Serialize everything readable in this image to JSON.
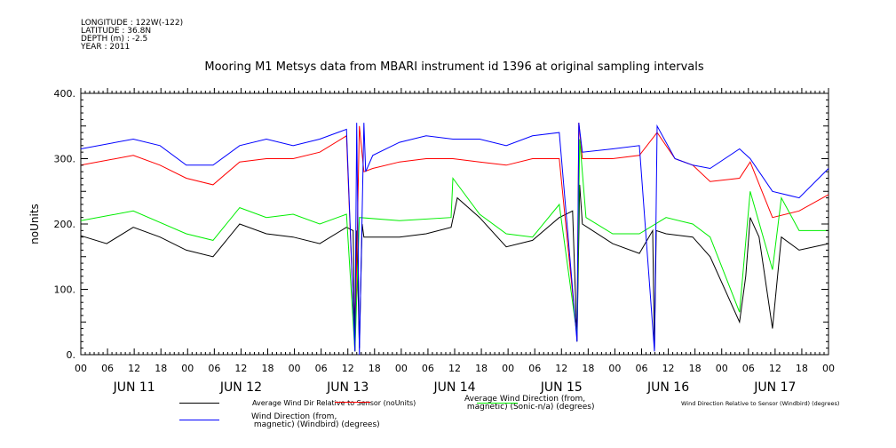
{
  "header": {
    "longitude": "LONGITUDE : 122W(-122)",
    "latitude": "LATITUDE : 36.8N",
    "depth": "DEPTH (m) : -2.5",
    "year": "YEAR : 2011"
  },
  "chart_data": {
    "type": "line",
    "title": "Mooring M1 Metsys data from MBARI instrument id 1396 at original sampling intervals",
    "ylabel": "noUnits",
    "xlabel": "",
    "ylim": [
      0,
      400
    ],
    "xlim_hours": [
      0,
      168
    ],
    "yticks": [
      "0.",
      "100.",
      "200.",
      "300.",
      "400."
    ],
    "yticks_values": [
      0,
      100,
      200,
      300,
      400
    ],
    "xtick_hour_labels": [
      "00",
      "06",
      "12",
      "18"
    ],
    "day_labels": [
      "JUN 11",
      "JUN 12",
      "JUN 13",
      "JUN 14",
      "JUN 15",
      "JUN 16",
      "JUN 17"
    ],
    "series": [
      {
        "name": "Average Wind Dir Relative to Sensor (noUnits)",
        "color": "#000000",
        "x": [
          0,
          5.8,
          11.8,
          17.8,
          23.7,
          29.7,
          35.7,
          41.7,
          47.7,
          53.7,
          59.7,
          61.2,
          61.6,
          62,
          62.6,
          63.2,
          63.6,
          65.6,
          71.6,
          77.6,
          83.2,
          84.6,
          89.6,
          95.6,
          101.5,
          107.5,
          110.5,
          111.5,
          112.1,
          112.7,
          119.5,
          125.5,
          128.5,
          128.9,
          129.3,
          131.5,
          137.5,
          141.4,
          148,
          149.4,
          150.4,
          152.4,
          155.4,
          157.4,
          161.4,
          168
        ],
        "y": [
          182,
          170,
          195,
          180,
          160,
          150,
          200,
          185,
          180,
          170,
          195,
          190,
          5,
          190,
          10,
          200,
          180,
          180,
          180,
          185,
          195,
          240,
          210,
          165,
          175,
          210,
          220,
          20,
          260,
          200,
          170,
          155,
          190,
          5,
          190,
          185,
          180,
          150,
          50,
          120,
          210,
          180,
          40,
          180,
          160,
          170
        ]
      },
      {
        "name": "Average Wind Direction (from,\n magnetic) (Sonic-n/a) (degrees)",
        "color": "#ff0000",
        "x": [
          0,
          11.8,
          17.8,
          23.7,
          29.7,
          35.7,
          41.7,
          47.7,
          53.7,
          59.7,
          61.6,
          62.6,
          63.6,
          65.6,
          71.6,
          77.6,
          83.6,
          89.6,
          95.6,
          101.5,
          107.5,
          111.5,
          111.9,
          112.7,
          119.5,
          125.5,
          129.5,
          133.5,
          137.5,
          141.4,
          148,
          150.4,
          155.4,
          161.4,
          168
        ],
        "y": [
          290,
          305,
          290,
          270,
          260,
          295,
          300,
          300,
          310,
          335,
          5,
          350,
          280,
          285,
          295,
          300,
          300,
          295,
          290,
          300,
          300,
          25,
          355,
          300,
          300,
          305,
          340,
          300,
          290,
          265,
          270,
          295,
          210,
          220,
          245
        ]
      },
      {
        "name": "Wind Direction Relative to Sensor (Windbird) (degrees)",
        "color": "#00ee00",
        "x": [
          0,
          11.8,
          23.7,
          29.7,
          35.7,
          41.7,
          47.7,
          53.7,
          59.7,
          61.6,
          62.6,
          71.6,
          83.2,
          83.6,
          89.6,
          95.6,
          101.5,
          107.5,
          111.5,
          112.1,
          113.5,
          119.5,
          125.5,
          131.5,
          137.5,
          141.4,
          148,
          150.4,
          155.4,
          157.4,
          161.4,
          168
        ],
        "y": [
          205,
          220,
          185,
          175,
          225,
          210,
          215,
          200,
          215,
          5,
          210,
          205,
          210,
          270,
          215,
          185,
          180,
          230,
          30,
          330,
          210,
          185,
          185,
          210,
          200,
          180,
          65,
          250,
          130,
          240,
          190,
          190
        ]
      },
      {
        "name": "Wind Direction (from,\n magnetic) (Windbird) (degrees)",
        "color": "#0000ff",
        "x": [
          0,
          11.8,
          17.8,
          23.7,
          29.7,
          35.7,
          41.7,
          47.7,
          53.7,
          59.7,
          61.6,
          62,
          62.6,
          63.6,
          64,
          65.6,
          71.6,
          77.6,
          83.6,
          89.6,
          95.6,
          101.5,
          107.5,
          111.5,
          111.9,
          112.7,
          119.5,
          125.5,
          128.9,
          129.5,
          133.5,
          137.5,
          141.4,
          148,
          150.4,
          155.4,
          161.4,
          168
        ],
        "y": [
          315,
          330,
          320,
          290,
          290,
          320,
          330,
          320,
          330,
          345,
          5,
          355,
          0,
          355,
          280,
          305,
          325,
          335,
          330,
          330,
          320,
          335,
          340,
          20,
          355,
          310,
          315,
          320,
          5,
          350,
          300,
          290,
          285,
          315,
          300,
          250,
          240,
          285
        ]
      }
    ]
  }
}
